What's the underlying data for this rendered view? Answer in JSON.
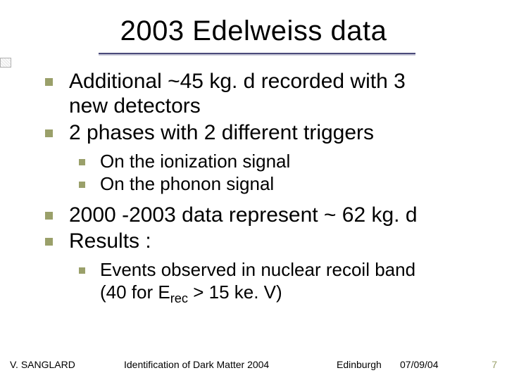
{
  "colors": {
    "background": "#ffffff",
    "text": "#000000",
    "bullet": "#9aa06a",
    "rule": "#4a4a7a",
    "rule_shadow": "#c8c8d8",
    "page_number": "#9aa06a"
  },
  "typography": {
    "title_fontsize": 40,
    "lvl1_fontsize": 30,
    "lvl2_fontsize": 26,
    "footer_fontsize": 14,
    "font_family": "Tahoma"
  },
  "title": "2003 Edelweiss data",
  "bullets": {
    "b1a": "Additional ~45 kg. d recorded with 3",
    "b1b": "new detectors",
    "b2": "2 phases with 2 different triggers",
    "b2s1": "On the ionization signal",
    "b2s2": "On the phonon signal",
    "b3": "2000 -2003 data represent ~ 62 kg. d",
    "b4": "Results :",
    "b4s1a": "Events observed in nuclear recoil band",
    "b4s1b_pre": "(40 for E",
    "b4s1b_sub": "rec",
    "b4s1b_post": " > 15 ke. V)"
  },
  "footer": {
    "author": "V. SANGLARD",
    "center": "Identification of Dark Matter 2004",
    "city": "Edinburgh",
    "date": "07/09/04",
    "page": "7"
  }
}
